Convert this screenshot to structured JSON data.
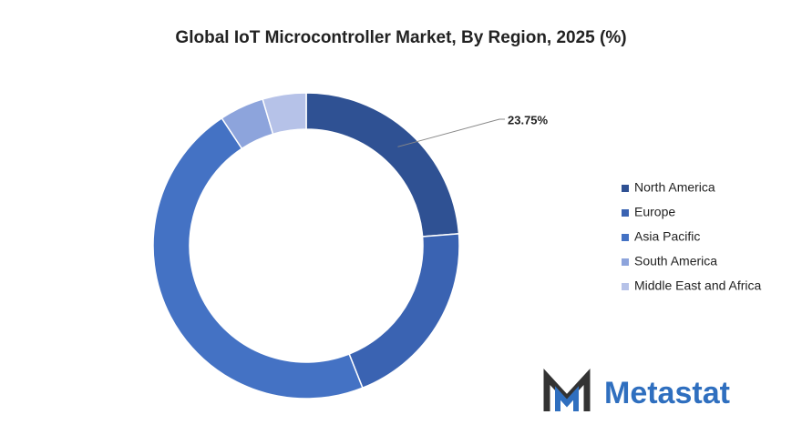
{
  "chart_data": {
    "type": "donut",
    "title": "Global IoT Microcontroller Market, By Region, 2025 (%)",
    "categories": [
      "North America",
      "Europe",
      "Asia Pacific",
      "South America",
      "Middle East and Africa"
    ],
    "values": [
      23.75,
      20.25,
      46.7,
      4.7,
      4.6
    ],
    "value_labels": [
      "23.75%",
      null,
      null,
      null,
      null
    ],
    "colors": [
      "#2f5193",
      "#3a63b2",
      "#4472c4",
      "#8da4dc",
      "#b6c2e8"
    ],
    "legend": "right"
  },
  "logo": "Metastat"
}
